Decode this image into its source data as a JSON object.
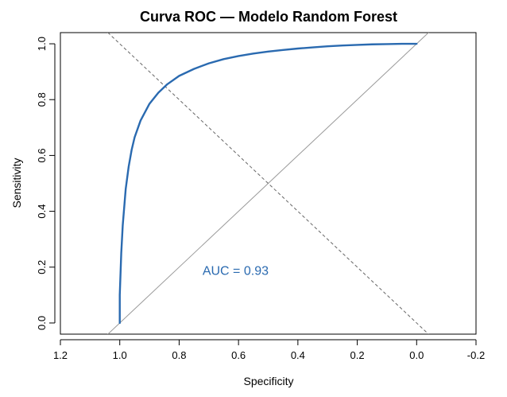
{
  "chart_data": {
    "type": "line",
    "title": "Curva ROC — Modelo Random Forest",
    "xlabel": "Specificity",
    "ylabel": "Sensitivity",
    "x_reversed": true,
    "xlim": [
      1.2,
      -0.2
    ],
    "ylim": [
      0.0,
      1.0
    ],
    "x_ticks": [
      "1.2",
      "1.0",
      "0.8",
      "0.6",
      "0.4",
      "0.2",
      "0.0",
      "-0.2"
    ],
    "y_ticks": [
      "0.0",
      "0.2",
      "0.4",
      "0.6",
      "0.8",
      "1.0"
    ],
    "grid": false,
    "series": [
      {
        "x": [
          1.0,
          1.0,
          0.995,
          0.99,
          0.98,
          0.97,
          0.96,
          0.95,
          0.93,
          0.9,
          0.87,
          0.84,
          0.8,
          0.75,
          0.7,
          0.65,
          0.6,
          0.55,
          0.5,
          0.45,
          0.4,
          0.35,
          0.3,
          0.25,
          0.2,
          0.15,
          0.1,
          0.05,
          0.0
        ],
        "y": [
          0.0,
          0.1,
          0.25,
          0.35,
          0.48,
          0.56,
          0.62,
          0.665,
          0.725,
          0.785,
          0.825,
          0.855,
          0.885,
          0.91,
          0.93,
          0.945,
          0.956,
          0.965,
          0.972,
          0.978,
          0.983,
          0.987,
          0.991,
          0.994,
          0.996,
          0.998,
          0.999,
          1.0,
          1.0
        ],
        "color": "#2a6ab0"
      }
    ],
    "reference_lines": [
      {
        "x": [
          1.0,
          0.0
        ],
        "y": [
          0.0,
          1.0
        ],
        "style": "solid",
        "color": "#999999"
      },
      {
        "x": [
          1.0,
          0.0
        ],
        "y": [
          1.0,
          0.0
        ],
        "style": "dashed",
        "color": "#666666"
      }
    ],
    "annotations": [
      {
        "text": "AUC = 0.93",
        "x": 0.61,
        "y": 0.19,
        "color": "#2a6ab0"
      }
    ]
  }
}
